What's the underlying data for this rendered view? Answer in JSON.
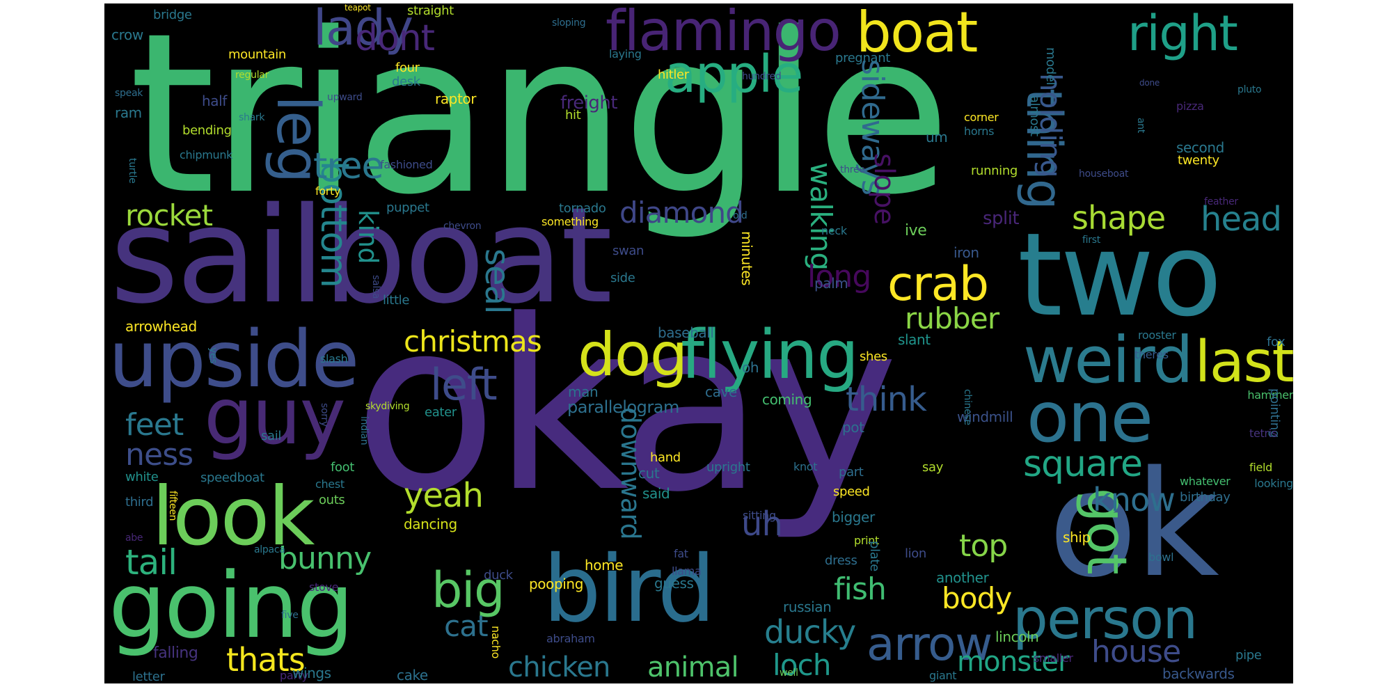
{
  "words": [
    {
      "text": "triangle",
      "color": "#3bb66f"
    },
    {
      "text": "okay",
      "color": "#472b7e"
    },
    {
      "text": "sailboat",
      "color": "#46337e"
    },
    {
      "text": "two",
      "color": "#277e8e"
    },
    {
      "text": "ok",
      "color": "#3b5a8b"
    },
    {
      "text": "bird",
      "color": "#2a6d8e"
    },
    {
      "text": "going",
      "color": "#4ac16d"
    },
    {
      "text": "upside",
      "color": "#3e4d8a"
    },
    {
      "text": "look",
      "color": "#6ccd5a"
    },
    {
      "text": "guy",
      "color": "#482a75"
    },
    {
      "text": "flying",
      "color": "#27a982"
    },
    {
      "text": "one",
      "color": "#2c728e"
    },
    {
      "text": "weird",
      "color": "#2b7b8e"
    },
    {
      "text": "person",
      "color": "#2a788e"
    },
    {
      "text": "dog",
      "color": "#d5e21a"
    },
    {
      "text": "last",
      "color": "#d2e21b"
    },
    {
      "text": "boat",
      "color": "#f1e51d"
    },
    {
      "text": "flamingo",
      "color": "#482475"
    },
    {
      "text": "lady",
      "color": "#404688"
    },
    {
      "text": "apple",
      "color": "#27ad81"
    },
    {
      "text": "leg",
      "color": "#355f8d"
    },
    {
      "text": "right",
      "color": "#1fa088"
    },
    {
      "text": "thing",
      "color": "#31688e"
    },
    {
      "text": "got",
      "color": "#54c568"
    },
    {
      "text": "crab",
      "color": "#fde725"
    },
    {
      "text": "arrow",
      "color": "#365c8d"
    },
    {
      "text": "big",
      "color": "#58c765"
    },
    {
      "text": "left",
      "color": "#3e4c8a"
    },
    {
      "text": "bottom",
      "color": "#24868e"
    },
    {
      "text": "tree",
      "color": "#2a778e"
    },
    {
      "text": "dont",
      "color": "#482878"
    },
    {
      "text": "sideways",
      "color": "#306a8e"
    },
    {
      "text": "walking",
      "color": "#2ab07f"
    },
    {
      "text": "holding",
      "color": "#38588c"
    },
    {
      "text": "slope",
      "color": "#471164"
    },
    {
      "text": "diamond",
      "color": "#3f4788"
    },
    {
      "text": "rocket",
      "color": "#9bd93c"
    },
    {
      "text": "shape",
      "color": "#a8db34"
    },
    {
      "text": "head",
      "color": "#26818e"
    },
    {
      "text": "kind",
      "color": "#21918c"
    },
    {
      "text": "seal",
      "color": "#2a788e"
    },
    {
      "text": "long",
      "color": "#46085c"
    },
    {
      "text": "rubber",
      "color": "#8bd646"
    },
    {
      "text": "christmas",
      "color": "#ece51b"
    },
    {
      "text": "square",
      "color": "#22a785"
    },
    {
      "text": "think",
      "color": "#365c8d"
    },
    {
      "text": "feet",
      "color": "#2a788e"
    },
    {
      "text": "ness",
      "color": "#3d4e8a"
    },
    {
      "text": "downward",
      "color": "#2a768e"
    },
    {
      "text": "know",
      "color": "#2e6f8e"
    },
    {
      "text": "yeah",
      "color": "#b2dd2d"
    },
    {
      "text": "uh",
      "color": "#3e4989"
    },
    {
      "text": "tail",
      "color": "#2db27d"
    },
    {
      "text": "bunny",
      "color": "#48c16e"
    },
    {
      "text": "top",
      "color": "#86d549"
    },
    {
      "text": "fish",
      "color": "#40bd72"
    },
    {
      "text": "body",
      "color": "#fde725"
    },
    {
      "text": "cat",
      "color": "#2d718e"
    },
    {
      "text": "ducky",
      "color": "#277f8e"
    },
    {
      "text": "house",
      "color": "#3e4c8a"
    },
    {
      "text": "thats",
      "color": "#f4e61e"
    },
    {
      "text": "chicken",
      "color": "#2a788e"
    },
    {
      "text": "animal",
      "color": "#4ec36b"
    },
    {
      "text": "loch",
      "color": "#1f988b"
    },
    {
      "text": "monster",
      "color": "#21a685"
    },
    {
      "text": "parallelogram",
      "color": "#2d708e"
    },
    {
      "text": "split",
      "color": "#482677"
    },
    {
      "text": "palm",
      "color": "#3b518b"
    },
    {
      "text": "minutes",
      "color": "#fde725"
    },
    {
      "text": "baseball",
      "color": "#2e6e8e"
    },
    {
      "text": "oh",
      "color": "#2d718e"
    },
    {
      "text": "cave",
      "color": "#2e6d8e"
    },
    {
      "text": "coming",
      "color": "#44bf70"
    },
    {
      "text": "man",
      "color": "#2b748e"
    },
    {
      "text": "slant",
      "color": "#1f948c"
    },
    {
      "text": "shes",
      "color": "#fde725"
    },
    {
      "text": "ive",
      "color": "#6ccd5a"
    },
    {
      "text": "iron",
      "color": "#38588c"
    },
    {
      "text": "pot",
      "color": "#2c718e"
    },
    {
      "text": "windmill",
      "color": "#3b528b"
    },
    {
      "text": "rooster",
      "color": "#2a788e"
    },
    {
      "text": "theres",
      "color": "#365c8d"
    },
    {
      "text": "fox",
      "color": "#2d718e"
    },
    {
      "text": "hammer",
      "color": "#4ac16d"
    },
    {
      "text": "pointing",
      "color": "#2e6e8e"
    },
    {
      "text": "tetris",
      "color": "#46337e"
    },
    {
      "text": "field",
      "color": "#b2dd2d"
    },
    {
      "text": "looking",
      "color": "#2a788e"
    },
    {
      "text": "whatever",
      "color": "#44bf70"
    },
    {
      "text": "birthday",
      "color": "#2e6e8e"
    },
    {
      "text": "lion",
      "color": "#3e4c8a"
    },
    {
      "text": "another",
      "color": "#21918c"
    },
    {
      "text": "lincoln",
      "color": "#6ccd5a"
    },
    {
      "text": "smaller",
      "color": "#482878"
    },
    {
      "text": "backwards",
      "color": "#38588c"
    },
    {
      "text": "pipe",
      "color": "#2a788e"
    },
    {
      "text": "giant",
      "color": "#2a788e"
    },
    {
      "text": "party",
      "color": "#482878"
    },
    {
      "text": "well",
      "color": "#6ccd5a"
    },
    {
      "text": "abraham",
      "color": "#3e4c8a"
    },
    {
      "text": "nacho",
      "color": "#fde725"
    },
    {
      "text": "cake",
      "color": "#2c718e"
    },
    {
      "text": "wings",
      "color": "#2a788e"
    },
    {
      "text": "letter",
      "color": "#2d718e"
    },
    {
      "text": "falling",
      "color": "#46337e"
    },
    {
      "text": "stove",
      "color": "#482878"
    },
    {
      "text": "five",
      "color": "#2e6e8e"
    },
    {
      "text": "alpaca",
      "color": "#2a788e"
    },
    {
      "text": "abe",
      "color": "#482878"
    },
    {
      "text": "fifteen",
      "color": "#fde725"
    },
    {
      "text": "third",
      "color": "#2e6e8e"
    },
    {
      "text": "white",
      "color": "#21918c"
    },
    {
      "text": "speedboat",
      "color": "#2a788e"
    },
    {
      "text": "chest",
      "color": "#2a788e"
    },
    {
      "text": "outs",
      "color": "#6ccd5a"
    },
    {
      "text": "foot",
      "color": "#44bf70"
    },
    {
      "text": "sail",
      "color": "#2a788e"
    },
    {
      "text": "sorry",
      "color": "#3e4c8a"
    },
    {
      "text": "indian",
      "color": "#2d718e"
    },
    {
      "text": "eater",
      "color": "#21918c"
    },
    {
      "text": "skydiving",
      "color": "#b2dd2d"
    },
    {
      "text": "dancing",
      "color": "#d5e21a"
    },
    {
      "text": "duck",
      "color": "#3e4c8a"
    },
    {
      "text": "home",
      "color": "#fde725"
    },
    {
      "text": "llama",
      "color": "#3e4c8a"
    },
    {
      "text": "pooping",
      "color": "#fde725"
    },
    {
      "text": "guess",
      "color": "#2a788e"
    },
    {
      "text": "russian",
      "color": "#2a788e"
    },
    {
      "text": "fat",
      "color": "#3e4c8a"
    },
    {
      "text": "print",
      "color": "#b2dd2d"
    },
    {
      "text": "dress",
      "color": "#2e6e8e"
    },
    {
      "text": "plate",
      "color": "#2a788e"
    },
    {
      "text": "ship",
      "color": "#fde725"
    },
    {
      "text": "bowl",
      "color": "#2d718e"
    },
    {
      "text": "bigger",
      "color": "#2a788e"
    },
    {
      "text": "speed",
      "color": "#fde725"
    },
    {
      "text": "part",
      "color": "#2e6e8e"
    },
    {
      "text": "say",
      "color": "#b2dd2d"
    },
    {
      "text": "hand",
      "color": "#fde725"
    },
    {
      "text": "upright",
      "color": "#2a788e"
    },
    {
      "text": "knot",
      "color": "#2d718e"
    },
    {
      "text": "cut",
      "color": "#2a788e"
    },
    {
      "text": "said",
      "color": "#21918c"
    },
    {
      "text": "sitting",
      "color": "#3e4c8a"
    },
    {
      "text": "little",
      "color": "#2a788e"
    },
    {
      "text": "arrowhead",
      "color": "#fde725"
    },
    {
      "text": "side",
      "color": "#2a788e"
    },
    {
      "text": "swan",
      "color": "#3e4c8a"
    },
    {
      "text": "puppet",
      "color": "#2a788e"
    },
    {
      "text": "chevron",
      "color": "#3e4c8a"
    },
    {
      "text": "tornado",
      "color": "#2a788e"
    },
    {
      "text": "something",
      "color": "#fde725"
    },
    {
      "text": "old",
      "color": "#2e6e8e"
    },
    {
      "text": "neck",
      "color": "#2a788e"
    },
    {
      "text": "salsa",
      "color": "#3e4c8a"
    },
    {
      "text": "chinese",
      "color": "#2a788e"
    },
    {
      "text": "slash",
      "color": "#2a788e"
    },
    {
      "text": "yes",
      "color": "#2a788e"
    },
    {
      "text": "forty",
      "color": "#fde725"
    },
    {
      "text": "fashioned",
      "color": "#3e4c8a"
    },
    {
      "text": "chipmunk",
      "color": "#2a788e"
    },
    {
      "text": "turtle",
      "color": "#2a788e"
    },
    {
      "text": "bending",
      "color": "#b2dd2d"
    },
    {
      "text": "ram",
      "color": "#2a788e"
    },
    {
      "text": "half",
      "color": "#3e4c8a"
    },
    {
      "text": "shark",
      "color": "#2a788e"
    },
    {
      "text": "speak",
      "color": "#2e6e8e"
    },
    {
      "text": "raptor",
      "color": "#fde725"
    },
    {
      "text": "upward",
      "color": "#3e4c8a"
    },
    {
      "text": "freight",
      "color": "#482878"
    },
    {
      "text": "desk",
      "color": "#2a788e"
    },
    {
      "text": "four",
      "color": "#fde725"
    },
    {
      "text": "hit",
      "color": "#b2dd2d"
    },
    {
      "text": "regular",
      "color": "#b2dd2d"
    },
    {
      "text": "mountain",
      "color": "#fde725"
    },
    {
      "text": "crow",
      "color": "#2a788e"
    },
    {
      "text": "bridge",
      "color": "#2a788e"
    },
    {
      "text": "teapot",
      "color": "#fde725"
    },
    {
      "text": "straight",
      "color": "#b2dd2d"
    },
    {
      "text": "sloping",
      "color": "#2e6e8e"
    },
    {
      "text": "laying",
      "color": "#2a788e"
    },
    {
      "text": "hitler",
      "color": "#fde725"
    },
    {
      "text": "hundred",
      "color": "#3e4c8a"
    },
    {
      "text": "almost",
      "color": "#2a788e"
    },
    {
      "text": "model",
      "color": "#2a788e"
    },
    {
      "text": "pregnant",
      "color": "#2a788e"
    },
    {
      "text": "done",
      "color": "#3e4c8a"
    },
    {
      "text": "pluto",
      "color": "#2a788e"
    },
    {
      "text": "pizza",
      "color": "#482878"
    },
    {
      "text": "ant",
      "color": "#2a788e"
    },
    {
      "text": "corner",
      "color": "#fde725"
    },
    {
      "text": "horns",
      "color": "#2a788e"
    },
    {
      "text": "um",
      "color": "#2a788e"
    },
    {
      "text": "three",
      "color": "#3e4c8a"
    },
    {
      "text": "running",
      "color": "#b2dd2d"
    },
    {
      "text": "second",
      "color": "#2a788e"
    },
    {
      "text": "twenty",
      "color": "#fde725"
    },
    {
      "text": "houseboat",
      "color": "#3e4c8a"
    },
    {
      "text": "feather",
      "color": "#482878"
    },
    {
      "text": "first",
      "color": "#2a788e"
    }
  ]
}
